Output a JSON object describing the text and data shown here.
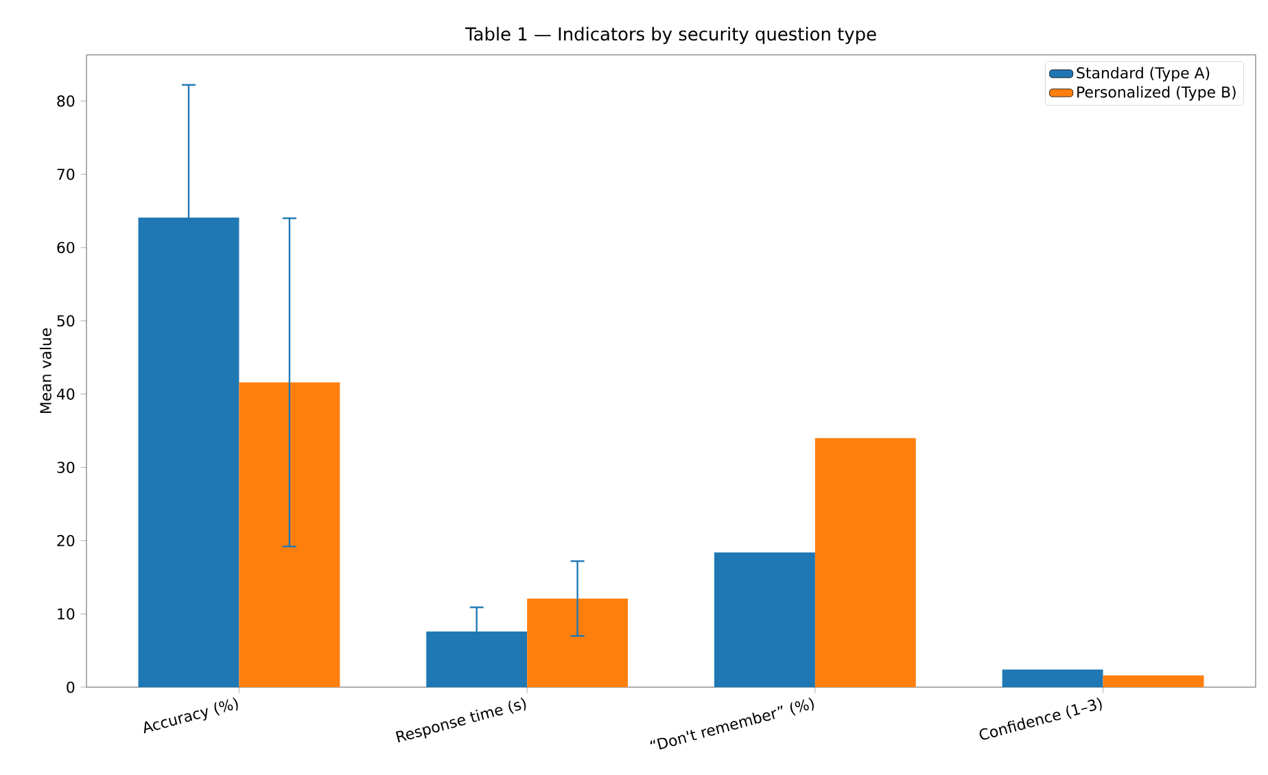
{
  "chart_data": {
    "type": "bar",
    "title": "Table 1 — Indicators by security question type",
    "ylabel": "Mean value",
    "categories": [
      "Accuracy (%)",
      "Response time (s)",
      "“Don't remember” (%)",
      "Confidence (1–3)"
    ],
    "series": [
      {
        "name": "Standard (Type A)",
        "color": "#1f77b4",
        "values": [
          64.1,
          7.6,
          18.4,
          2.4
        ],
        "errors": [
          18.1,
          3.3,
          null,
          null
        ]
      },
      {
        "name": "Personalized (Type B)",
        "color": "#ff7f0e",
        "values": [
          41.6,
          12.1,
          34.0,
          1.6
        ],
        "errors": [
          22.4,
          5.1,
          null,
          null
        ]
      }
    ],
    "ylim": [
      0,
      86.3
    ],
    "yticks": [
      0,
      10,
      20,
      30,
      40,
      50,
      60,
      70,
      80
    ],
    "legend": "top right",
    "grid": false
  }
}
